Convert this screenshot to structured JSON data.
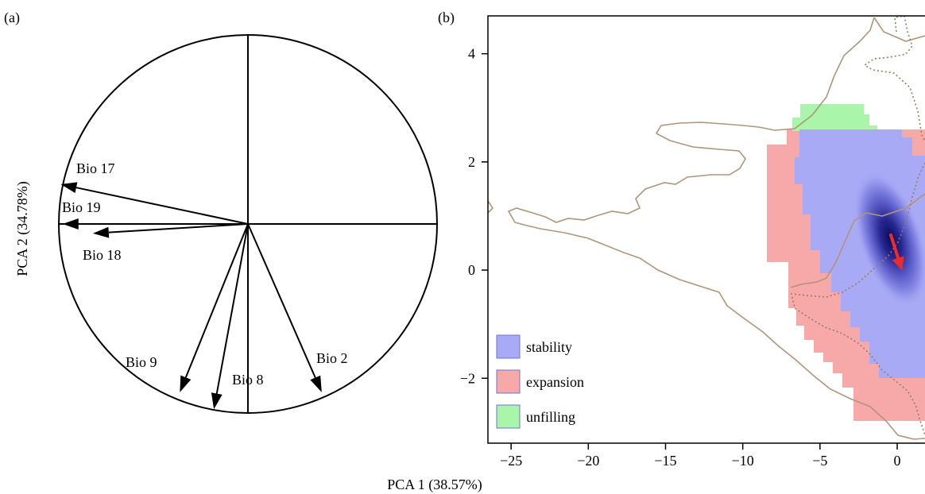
{
  "figure": {
    "x_axis_label": "PCA 1 (38.57%)",
    "y_axis_label": "PCA 2 (34.78%)"
  },
  "chart_data": [
    {
      "panel_label": "(a)",
      "type": "correlation-circle",
      "xlabel": "",
      "ylabel": "",
      "grid": false,
      "vectors": [
        {
          "label": "Bio 17",
          "x": -0.99,
          "y": 0.21
        },
        {
          "label": "Bio 19",
          "x": -0.98,
          "y": 0.0
        },
        {
          "label": "Bio 18",
          "x": -0.82,
          "y": -0.05
        },
        {
          "label": "Bio 9",
          "x": -0.36,
          "y": -0.89
        },
        {
          "label": "Bio 8",
          "x": -0.18,
          "y": -0.98
        },
        {
          "label": "Bio 2",
          "x": 0.39,
          "y": -0.89
        }
      ]
    },
    {
      "panel_label": "(b)",
      "type": "heatmap",
      "xlabel": "",
      "ylabel": "",
      "xlim": [
        -26.5,
        1.8
      ],
      "ylim": [
        -3.2,
        4.7
      ],
      "x_ticks": [
        -25,
        -20,
        -15,
        -10,
        -5,
        0
      ],
      "y_ticks": [
        4,
        2,
        0,
        -2
      ],
      "x_tick_labels": [
        "−25",
        "−20",
        "−15",
        "−10",
        "−5",
        "0"
      ],
      "y_tick_labels": [
        "4",
        "2",
        "0",
        "−2"
      ],
      "grid": false,
      "legend_position": "bottom-left",
      "legend": [
        {
          "label": "stability",
          "color": "#a9aaf5"
        },
        {
          "label": "expansion",
          "color": "#f7a9a9"
        },
        {
          "label": "unfilling",
          "color": "#a9f5a9"
        }
      ],
      "density_peak": {
        "x": -0.6,
        "y": 0.6
      },
      "centroid_shift": {
        "from": {
          "x": -0.5,
          "y": 0.65
        },
        "to": {
          "x": 0.0,
          "y": 0.0
        },
        "color": "#ee2b2b"
      },
      "colors": {
        "contour": "#b0957a",
        "dark": "#1a1a6e"
      }
    }
  ]
}
